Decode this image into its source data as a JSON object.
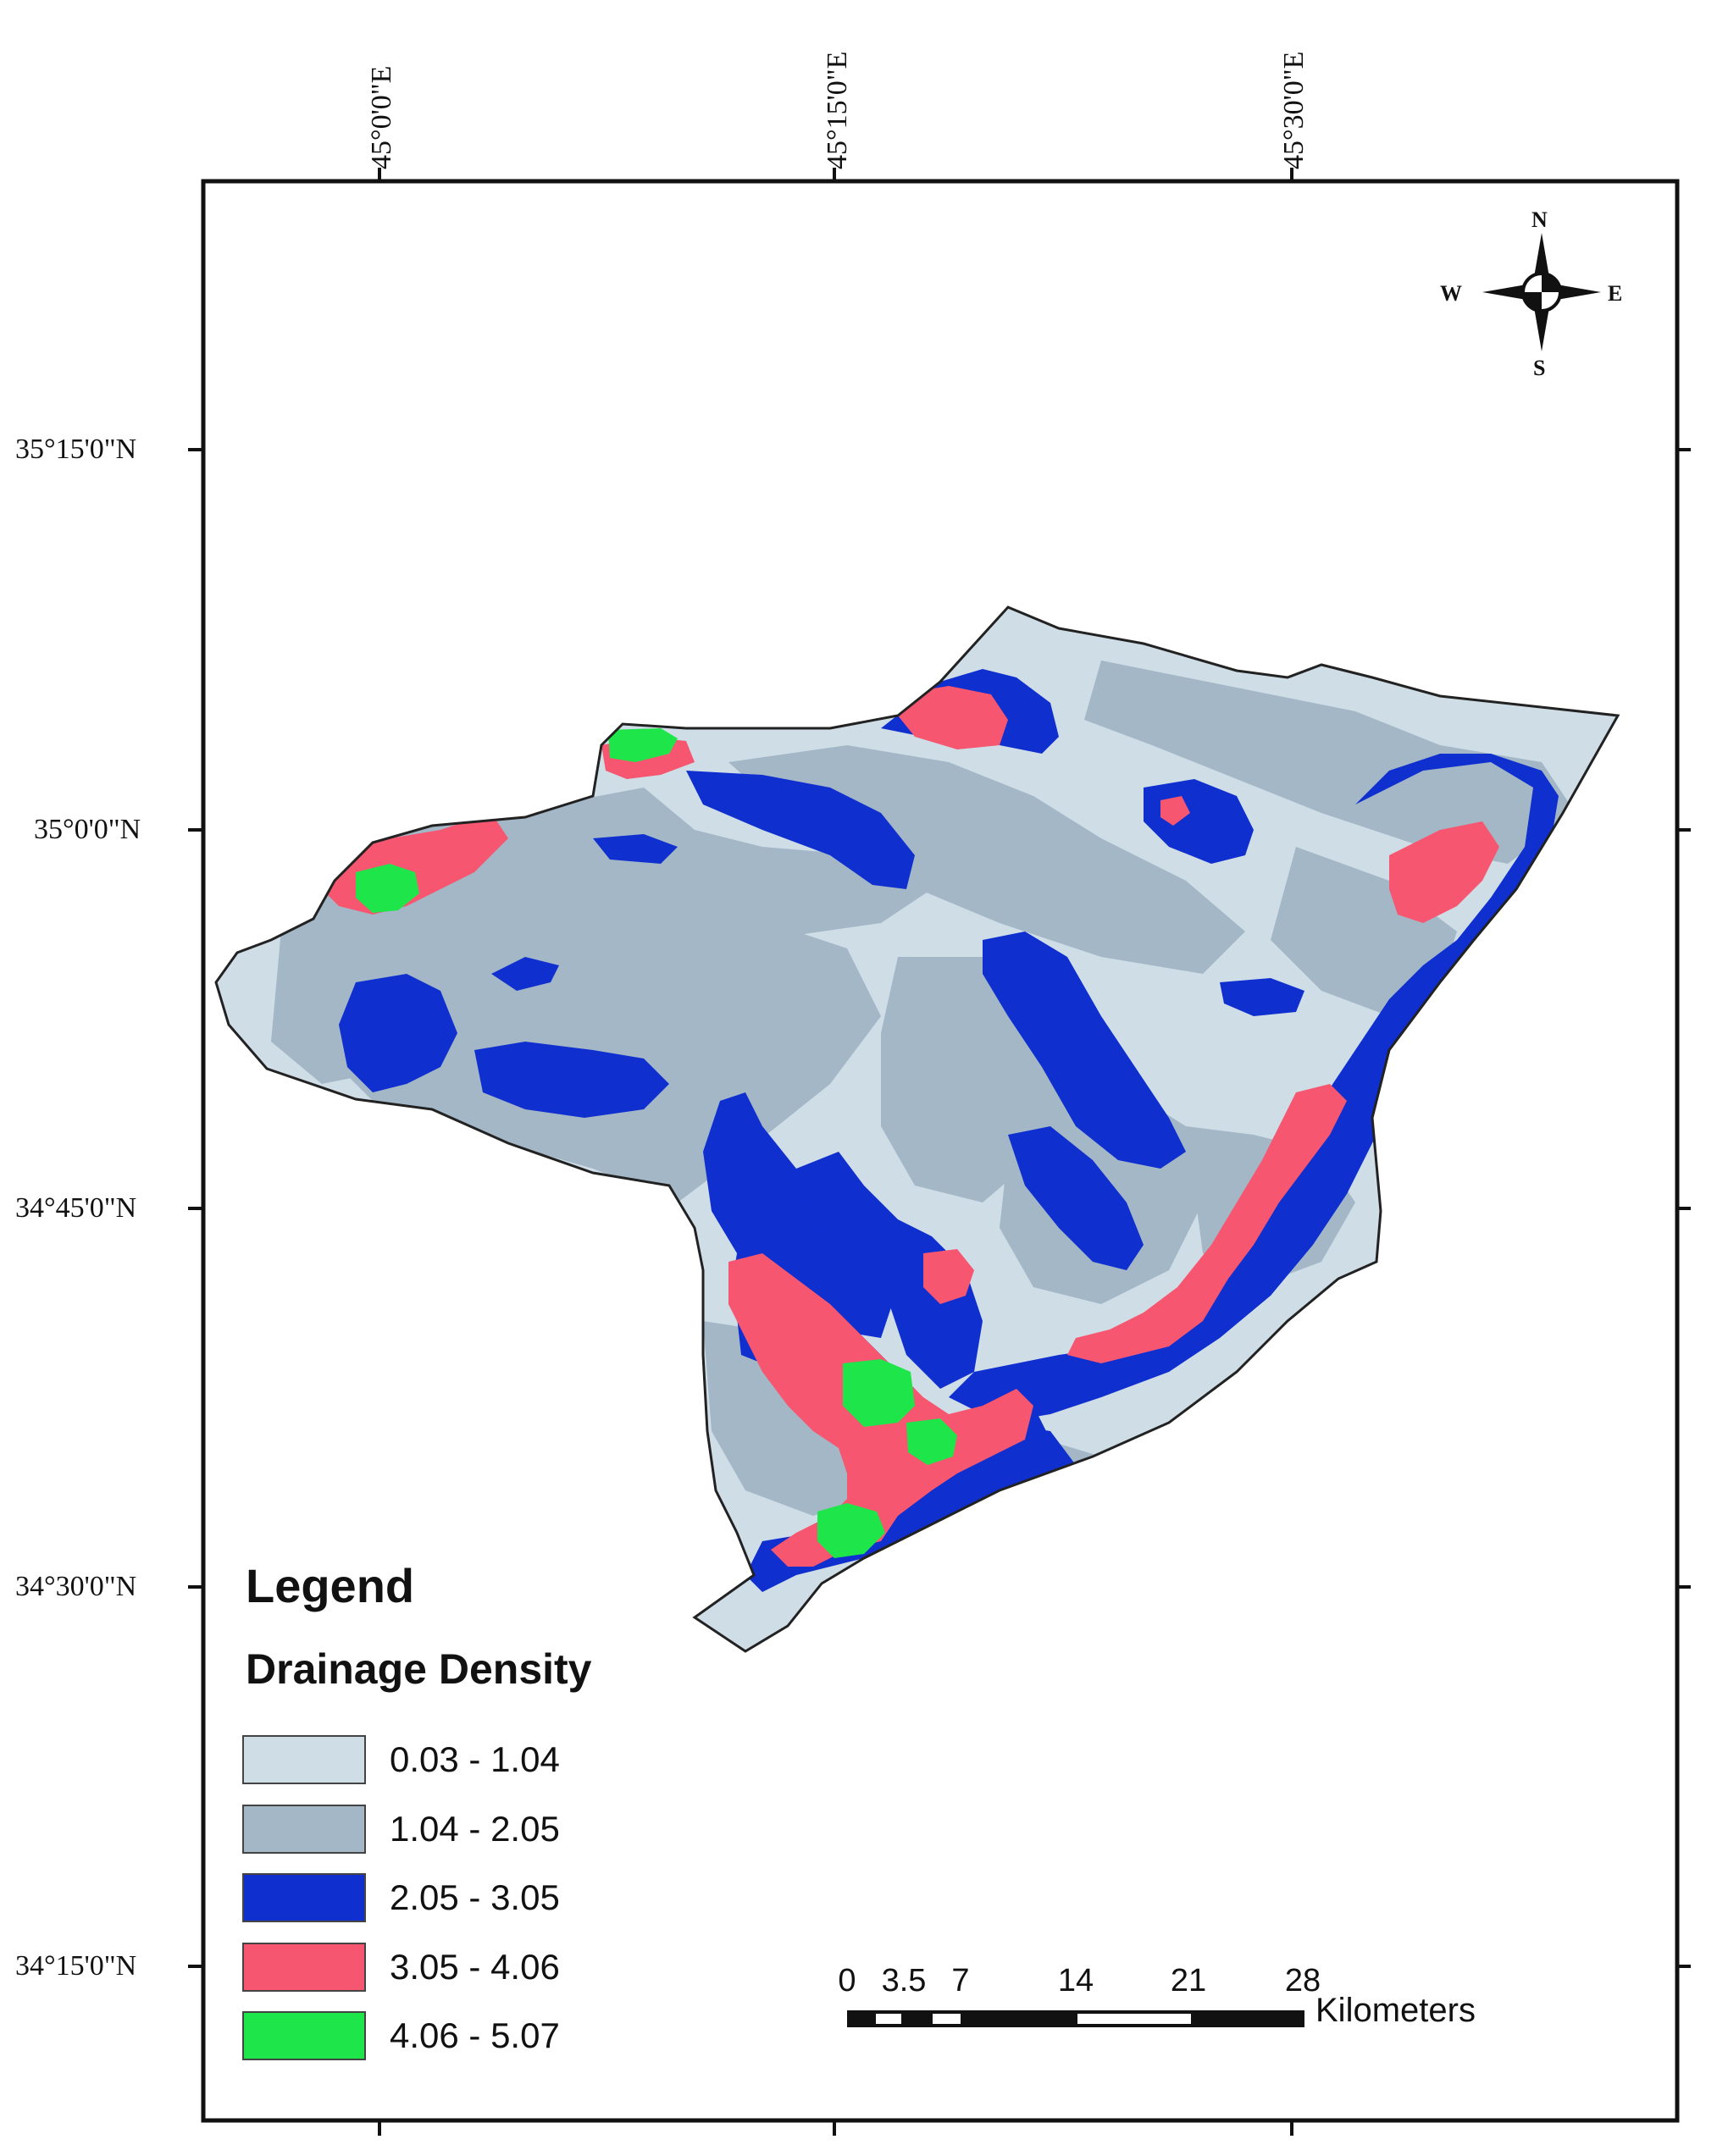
{
  "map": {
    "graticule": {
      "longitudes": [
        "45°0'0\"E",
        "45°15'0\"E",
        "45°30'0\"E"
      ],
      "latitudes": [
        "35°15'0\"N",
        "35°0'0\"N",
        "34°45'0\"N",
        "34°30'0\"N",
        "34°15'0\"N"
      ]
    },
    "legend": {
      "title": "Legend",
      "subtitle": "Drainage Density",
      "classes": [
        {
          "label": "0.03 - 1.04",
          "color": "#cfdde6"
        },
        {
          "label": "1.04 - 2.05",
          "color": "#a3b7c7"
        },
        {
          "label": "2.05 - 3.05",
          "color": "#0f2fcf"
        },
        {
          "label": "3.05 - 4.06",
          "color": "#f6566f"
        },
        {
          "label": "4.06 - 5.07",
          "color": "#1ee64a"
        }
      ]
    },
    "scale_bar": {
      "ticks": [
        "0",
        "3.5",
        "7",
        "14",
        "21",
        "28"
      ],
      "unit": "Kilometers"
    },
    "north_arrow": {
      "n": "N",
      "e": "E",
      "s": "S",
      "w": "W",
      "icon": "compass-rose-icon"
    }
  }
}
